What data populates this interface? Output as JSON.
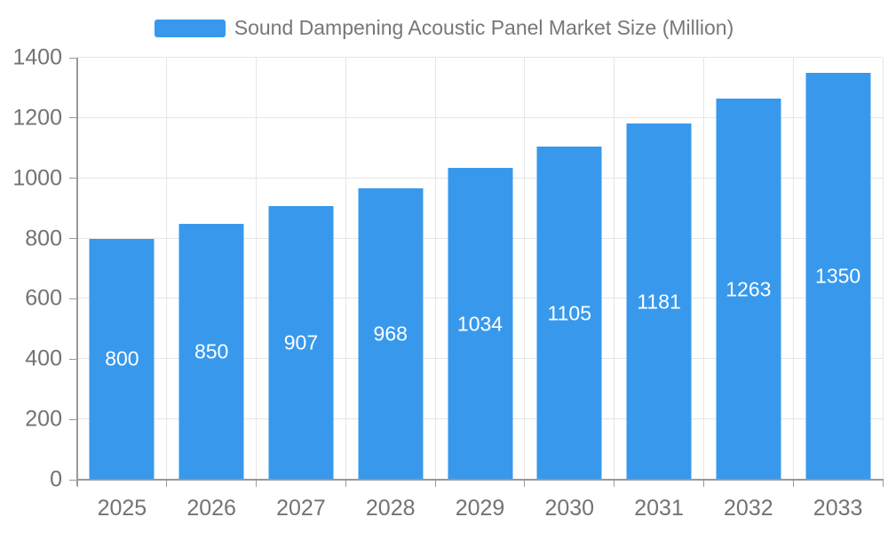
{
  "legend": {
    "label": "Sound Dampening Acoustic Panel Market Size (Million)"
  },
  "chart_data": {
    "type": "bar",
    "title": "Sound Dampening Acoustic Panel Market Size (Million)",
    "categories": [
      "2025",
      "2026",
      "2027",
      "2028",
      "2029",
      "2030",
      "2031",
      "2032",
      "2033"
    ],
    "values": [
      800,
      850,
      907,
      968,
      1034,
      1105,
      1181,
      1263,
      1350
    ],
    "xlabel": "",
    "ylabel": "",
    "ylim": [
      0,
      1400
    ],
    "yticks": [
      0,
      200,
      400,
      600,
      800,
      1000,
      1200,
      1400
    ],
    "grid": true,
    "legend_position": "top",
    "value_label_position": "inside-center"
  },
  "colors": {
    "bar": "#3899ec",
    "bar_value_text": "#ffffff",
    "grid": "#e6e6e6",
    "axis": "#999999",
    "tick_label": "#737373",
    "legend_text": "#777777",
    "background": "#ffffff"
  }
}
